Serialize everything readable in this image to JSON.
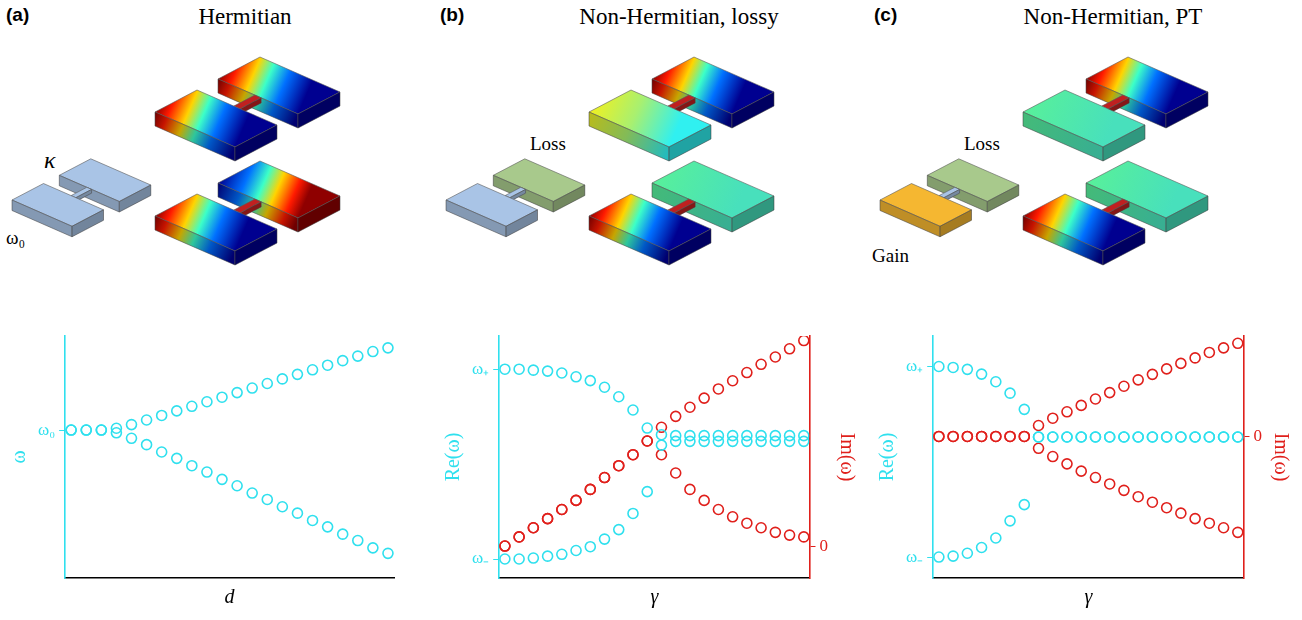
{
  "chart_data": [
    {
      "type": "scatter",
      "panel": "(a)",
      "title": "Hermitian",
      "annotations": [
        "κ",
        "ω₀"
      ],
      "x_label": "d",
      "y_label": "ω",
      "x": [
        0,
        1,
        2,
        3,
        4,
        5,
        6,
        7,
        8,
        9,
        10,
        11,
        12,
        13,
        14,
        15,
        16,
        17,
        18,
        19,
        20,
        21
      ],
      "series": [
        {
          "color": "#2fe0ee",
          "marker": "circle",
          "values": [
            0,
            0,
            0,
            0.02,
            0.06,
            0.11,
            0.16,
            0.21,
            0.26,
            0.31,
            0.36,
            0.41,
            0.46,
            0.51,
            0.56,
            0.61,
            0.66,
            0.71,
            0.76,
            0.81,
            0.86,
            0.9
          ]
        },
        {
          "color": "#2fe0ee",
          "marker": "circle",
          "values": [
            0,
            0,
            0,
            -0.03,
            -0.09,
            -0.16,
            -0.24,
            -0.31,
            -0.39,
            -0.46,
            -0.54,
            -0.61,
            -0.69,
            -0.76,
            -0.84,
            -0.91,
            -0.99,
            -1.06,
            -1.14,
            -1.21,
            -1.29,
            -1.35
          ]
        }
      ],
      "xlim": [
        -0.4,
        21.4
      ],
      "ylim": [
        -1.62,
        1.03
      ],
      "yticks": [
        {
          "value": 0,
          "label": "ω₀"
        }
      ],
      "grid": false,
      "tick_labels": "y"
    },
    {
      "type": "scatter",
      "panel": "(b)",
      "title": "Non-Hermitian, lossy",
      "annotations": [
        "Loss"
      ],
      "x_label": "γ",
      "y_label": "Re(ω)",
      "y2_label": "Im(ω)",
      "x": [
        0,
        1,
        2,
        3,
        4,
        5,
        6,
        7,
        8,
        9,
        10,
        11,
        12,
        13,
        14,
        15,
        16,
        17,
        18,
        19,
        20,
        21
      ],
      "series": [
        {
          "color": "#2fe0ee",
          "marker": "circle",
          "values": [
            1.0,
            1.0,
            0.99,
            0.98,
            0.96,
            0.92,
            0.88,
            0.81,
            0.71,
            0.57,
            0.38,
            0.31,
            0.3,
            0.3,
            0.3,
            0.3,
            0.3,
            0.3,
            0.3,
            0.3,
            0.3,
            0.3
          ]
        },
        {
          "color": "#2fe0ee",
          "marker": "circle",
          "values": [
            -1.0,
            -1.0,
            -0.99,
            -0.97,
            -0.95,
            -0.91,
            -0.87,
            -0.79,
            -0.69,
            -0.52,
            -0.29,
            0.2,
            0.24,
            0.24,
            0.24,
            0.24,
            0.24,
            0.24,
            0.24,
            0.24,
            0.24,
            0.24
          ]
        },
        {
          "color": "#e0201c",
          "marker": "circle",
          "axis": "y2",
          "values": [
            0,
            0.1,
            0.2,
            0.3,
            0.4,
            0.5,
            0.62,
            0.75,
            0.88,
            1.0,
            1.15,
            1.3,
            1.42,
            1.52,
            1.62,
            1.72,
            1.81,
            1.9,
            1.99,
            2.07,
            2.16,
            2.25
          ]
        },
        {
          "color": "#e0201c",
          "marker": "circle",
          "axis": "y2",
          "values": [
            0,
            0.1,
            0.2,
            0.3,
            0.4,
            0.5,
            0.62,
            0.75,
            0.88,
            1.0,
            1.15,
            1.0,
            0.8,
            0.62,
            0.5,
            0.4,
            0.32,
            0.25,
            0.2,
            0.15,
            0.12,
            0.1
          ]
        }
      ],
      "xlim": [
        -0.4,
        21.4
      ],
      "ylim": [
        -1.2,
        1.35
      ],
      "y2lim": [
        -0.35,
        2.3
      ],
      "yticks": [
        {
          "value": -1,
          "label": "ω₋"
        },
        {
          "value": 1,
          "label": "ω₊"
        }
      ],
      "y2ticks": [
        0
      ],
      "grid": false,
      "tick_labels": "y"
    },
    {
      "type": "scatter",
      "panel": "(c)",
      "title": "Non-Hermitian, PT",
      "annotations": [
        "Gain",
        "Loss"
      ],
      "x_label": "γ",
      "y_label": "Re(ω)",
      "y2_label": "Im(ω)",
      "x": [
        0,
        1,
        2,
        3,
        4,
        5,
        6,
        7,
        8,
        9,
        10,
        11,
        12,
        13,
        14,
        15,
        16,
        17,
        18,
        19,
        20,
        21
      ],
      "series": [
        {
          "color": "#2fe0ee",
          "marker": "circle",
          "values": [
            1.0,
            0.99,
            0.97,
            0.92,
            0.84,
            0.72,
            0.55,
            0.26,
            0.26,
            0.26,
            0.26,
            0.26,
            0.26,
            0.26,
            0.26,
            0.26,
            0.26,
            0.26,
            0.26,
            0.26,
            0.26,
            0.26
          ]
        },
        {
          "color": "#2fe0ee",
          "marker": "circle",
          "values": [
            -1.0,
            -0.99,
            -0.96,
            -0.9,
            -0.8,
            -0.62,
            -0.45,
            0.26,
            0.26,
            0.26,
            0.26,
            0.26,
            0.26,
            0.26,
            0.26,
            0.26,
            0.26,
            0.26,
            0.26,
            0.26,
            0.26,
            0.26
          ]
        },
        {
          "color": "#e0201c",
          "marker": "circle",
          "axis": "y2",
          "values": [
            0,
            0,
            0,
            0,
            0,
            0,
            0,
            0.12,
            0.2,
            0.27,
            0.34,
            0.41,
            0.48,
            0.55,
            0.62,
            0.68,
            0.74,
            0.8,
            0.86,
            0.92,
            0.97,
            1.02
          ]
        },
        {
          "color": "#e0201c",
          "marker": "circle",
          "axis": "y2",
          "values": [
            0,
            0,
            0,
            0,
            0,
            0,
            0,
            -0.13,
            -0.22,
            -0.3,
            -0.38,
            -0.45,
            -0.52,
            -0.59,
            -0.66,
            -0.72,
            -0.78,
            -0.84,
            -0.9,
            -0.95,
            -1.0,
            -1.05
          ]
        }
      ],
      "xlim": [
        -0.4,
        21.4
      ],
      "ylim": [
        -1.22,
        1.32
      ],
      "y2lim": [
        -1.55,
        1.1
      ],
      "yticks": [
        {
          "value": -1,
          "label": "ω₋"
        },
        {
          "value": 1,
          "label": "ω₊"
        }
      ],
      "y2ticks": [
        0
      ],
      "grid": false,
      "tick_labels": "y"
    }
  ]
}
